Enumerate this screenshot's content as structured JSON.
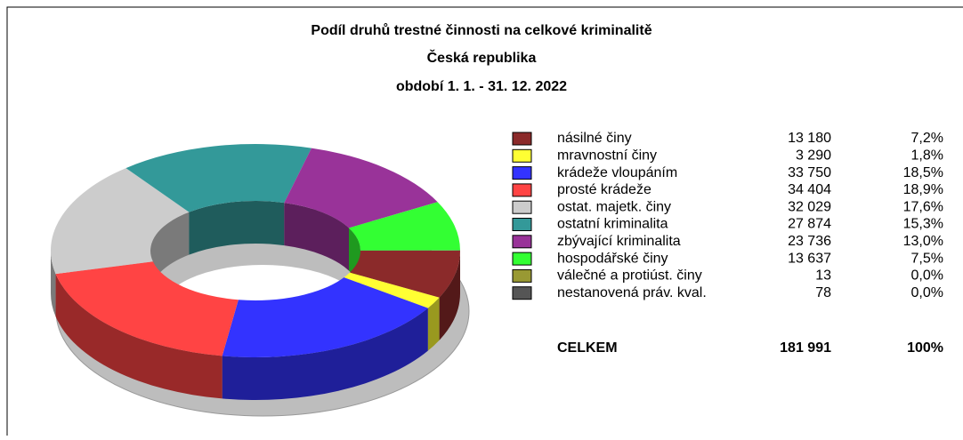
{
  "chart_data": {
    "type": "donut",
    "title_lines": [
      "Podíl druhů trestné činnosti na celkové kriminalitě",
      "Česká republika",
      "období 1. 1. - 31. 12. 2022"
    ],
    "categories": [
      "násilné činy",
      "mravnostní činy",
      "krádeže vloupáním",
      "prosté krádeže",
      "ostat. majetk. činy",
      "ostatní kriminalita",
      "zbývající kriminalita",
      "hospodářské činy",
      "válečné a protiúst. činy",
      "nestanovená práv. kval."
    ],
    "values": [
      13180,
      3290,
      33750,
      34404,
      32029,
      27874,
      23736,
      13637,
      13,
      78
    ],
    "value_labels": [
      "13 180",
      "3 290",
      "33 750",
      "34 404",
      "32 029",
      "27 874",
      "23 736",
      "13 637",
      "13",
      "78"
    ],
    "percents": [
      7.2,
      1.8,
      18.5,
      18.9,
      17.6,
      15.3,
      13.0,
      7.5,
      0.0,
      0.0
    ],
    "percent_labels": [
      "7,2%",
      "1,8%",
      "18,5%",
      "18,9%",
      "17,6%",
      "15,3%",
      "13,0%",
      "7,5%",
      "0,0%",
      "0,0%"
    ],
    "colors": [
      "#8b2a2a",
      "#ffff33",
      "#3333ff",
      "#ff4444",
      "#cccccc",
      "#339999",
      "#993399",
      "#33ff33",
      "#999933",
      "#555555"
    ],
    "total_label": "CELKEM",
    "total": 181991,
    "total_value_label": "181 991",
    "total_percent": 100,
    "total_percent_label": "100%"
  }
}
